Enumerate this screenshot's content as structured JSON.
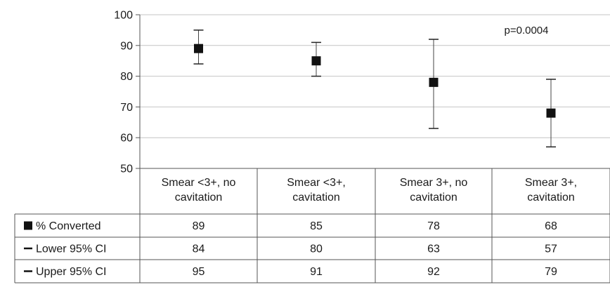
{
  "chart_data": {
    "type": "scatter",
    "categories": [
      [
        "Smear <3+, no",
        "cavitation"
      ],
      [
        "Smear <3+,",
        "cavitation"
      ],
      [
        "Smear 3+, no",
        "cavitation"
      ],
      [
        "Smear 3+,",
        "cavitation"
      ]
    ],
    "series": [
      {
        "name": "% Converted",
        "values": [
          89,
          85,
          78,
          68
        ]
      },
      {
        "name": "Lower 95% CI",
        "values": [
          84,
          80,
          63,
          57
        ]
      },
      {
        "name": "Upper 95% CI",
        "values": [
          95,
          91,
          92,
          79
        ]
      }
    ],
    "ylim": [
      50,
      100
    ],
    "yticks": [
      50,
      60,
      70,
      80,
      90,
      100
    ],
    "grid": true,
    "annotation": "p=0.0004",
    "legend_placement": "data-table-left"
  }
}
